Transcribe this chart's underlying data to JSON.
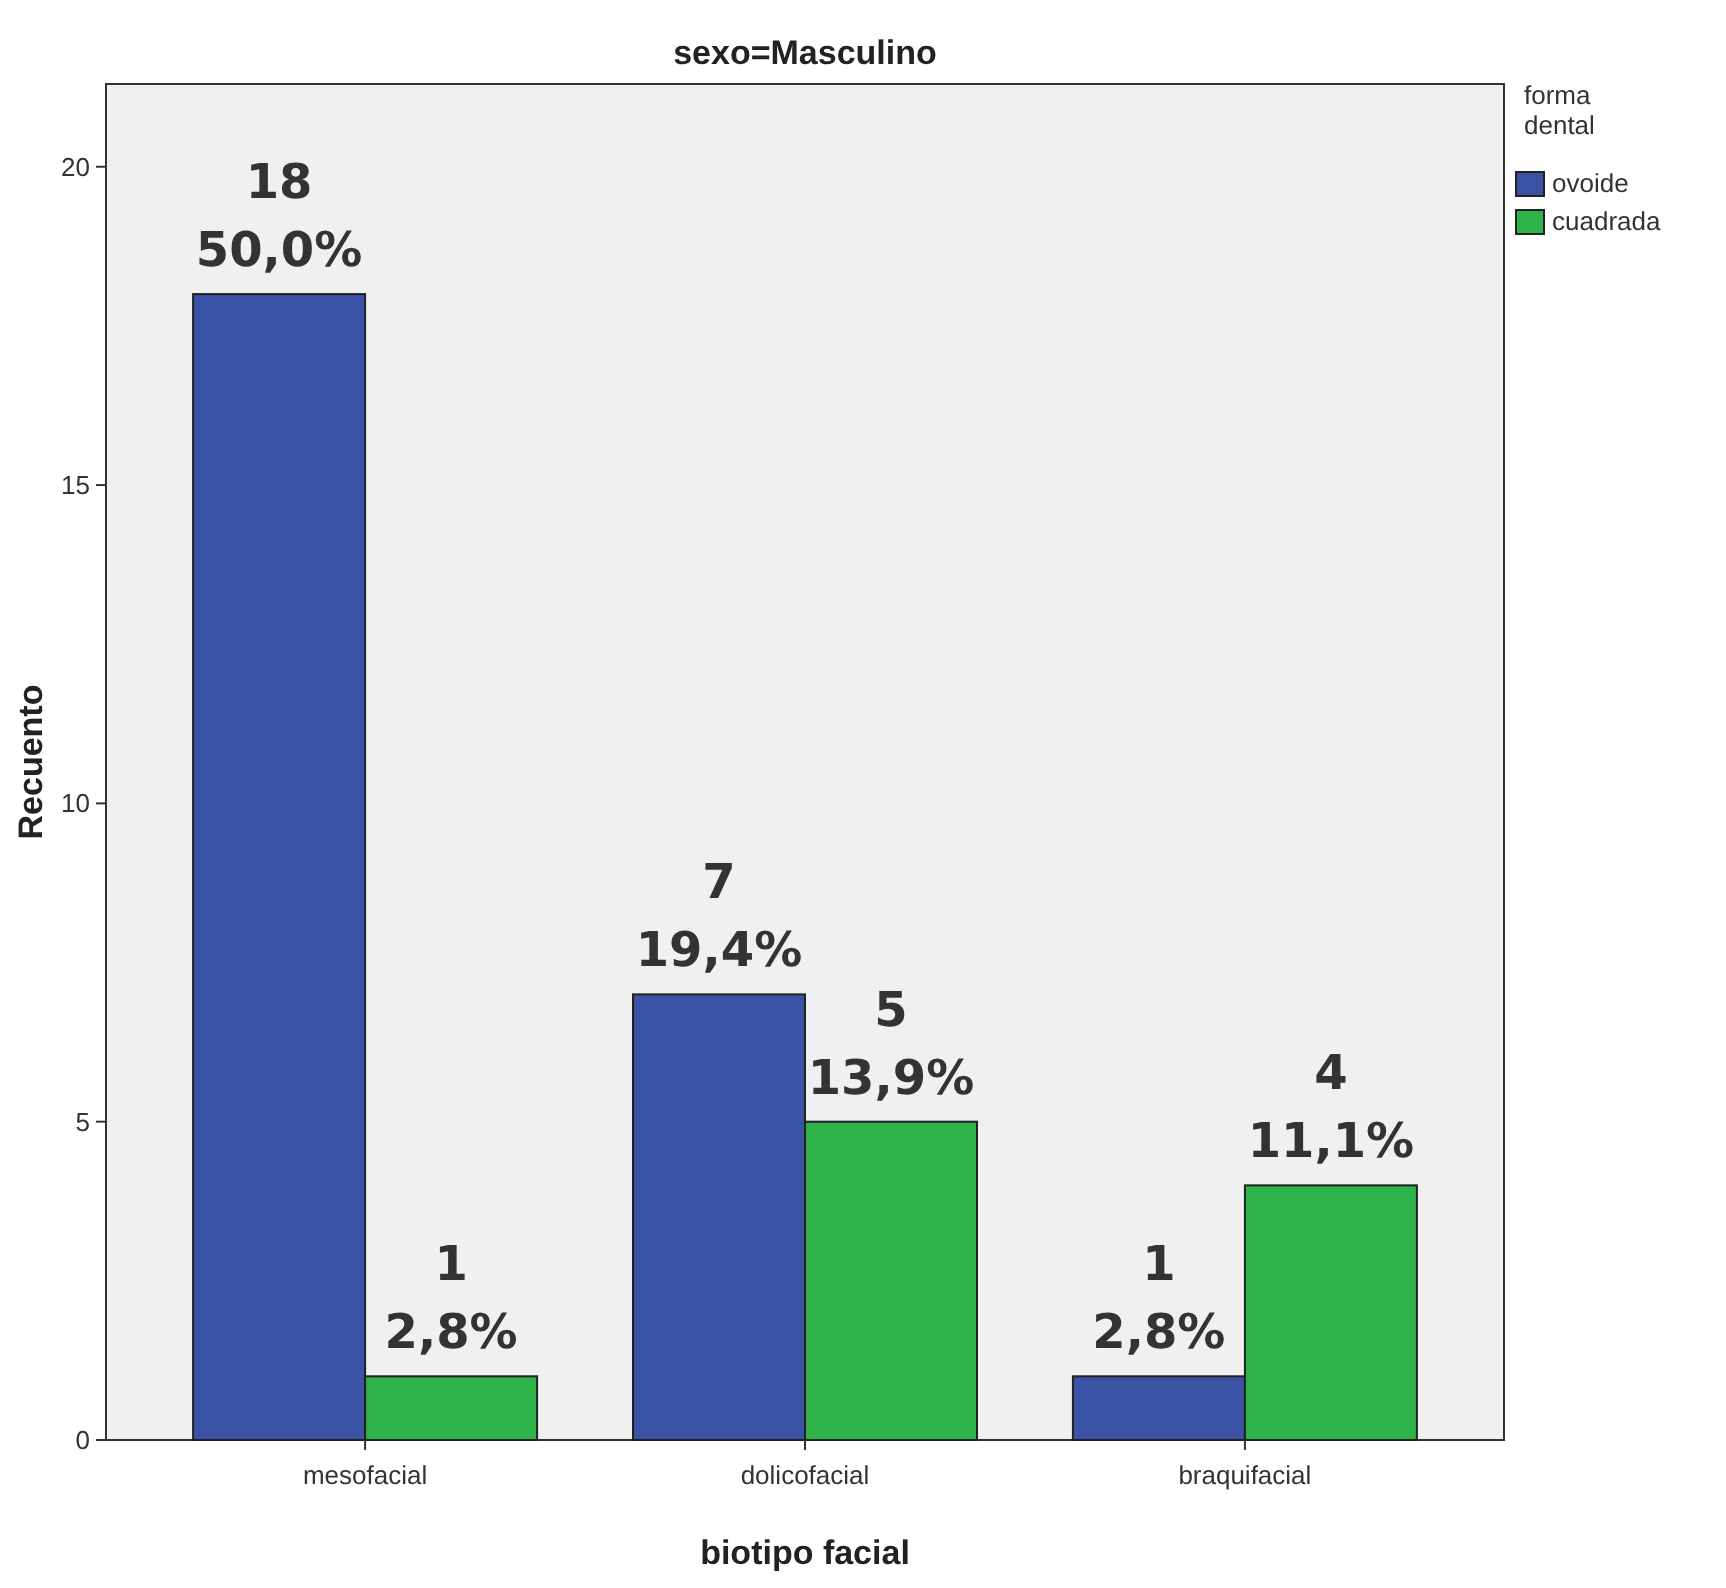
{
  "chart_data": {
    "type": "bar",
    "title": "sexo=Masculino",
    "xlabel": "biotipo facial",
    "ylabel": "Recuento",
    "legend_title": "forma dental",
    "categories": [
      "mesofacial",
      "dolicofacial",
      "braquifacial"
    ],
    "series": [
      {
        "name": "ovoide",
        "color": "#3a53a4",
        "values": [
          18,
          7,
          1
        ],
        "value_labels": [
          "18\n50,0%",
          "7\n19,4%",
          "1\n2,8%"
        ]
      },
      {
        "name": "cuadrada",
        "color": "#2db34a",
        "values": [
          1,
          5,
          4
        ],
        "value_labels": [
          "1\n2,8%",
          "5\n13,9%",
          "4\n11,1%"
        ]
      }
    ],
    "ylim": [
      0,
      21.3
    ],
    "yticks": [
      0,
      5,
      10,
      15,
      20
    ],
    "grid": false,
    "legend": "top right"
  }
}
